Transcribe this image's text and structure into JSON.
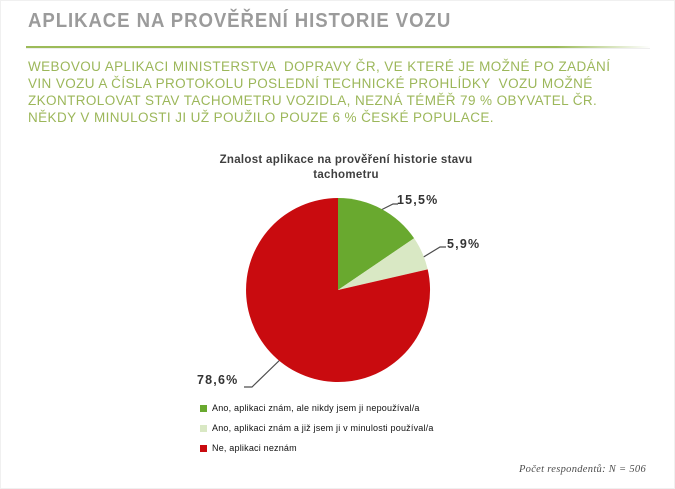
{
  "slide": {
    "title": "APLIKACE NA PROVĚŘENÍ HISTORIE VOZU",
    "intro_lines": [
      "WEBOVOU APLIKACI MINISTERSTVA  DOPRAVY ČR, VE KTERÉ JE MOŽNÉ PO ZADÁNÍ",
      "VIN VOZU A ČÍSLA PROTOKOLU POSLEDNÍ TECHNICKÉ PROHLÍDKY  VOZU MOŽNÉ",
      "ZKONTROLOVAT STAV TACHOMETRU VOZIDLA, NEZNÁ TÉMĚŘ 79 % OBYVATEL ČR.",
      "NĚKDY V MINULOSTI JI UŽ POUŽILO POUZE 6 % ČESKÉ POPULACE."
    ],
    "footer_note": "Počet respondentů: N = 506"
  },
  "chart_data": {
    "type": "pie",
    "title": "Znalost aplikace na prověření historie stavu tachometru",
    "categories": [
      "Ano, aplikaci znám, ale nikdy jsem ji nepoužíval/a",
      "Ano, aplikaci znám a již jsem ji v minulosti používal/a",
      "Ne, aplikaci neznám"
    ],
    "values": [
      15.5,
      5.9,
      78.6
    ],
    "labels": [
      "15,5%",
      "5,9%",
      "78,6%"
    ],
    "colors": [
      "#69A92F",
      "#D9E8C4",
      "#C90B0F"
    ],
    "unit": "%",
    "start_angle": "top",
    "direction": "clockwise",
    "legend_position": "bottom-left"
  },
  "theme": {
    "title_color": "#9B9B9B",
    "accent_line_color": "#9CBB59",
    "intro_text_color": "#9CB75A",
    "chart_title_color": "#3F3F3F",
    "pie_label_color": "#333333",
    "leader_line_color": "#4D4D4D",
    "note_color": "#4D4D4D",
    "background": "#FFFFFF"
  }
}
